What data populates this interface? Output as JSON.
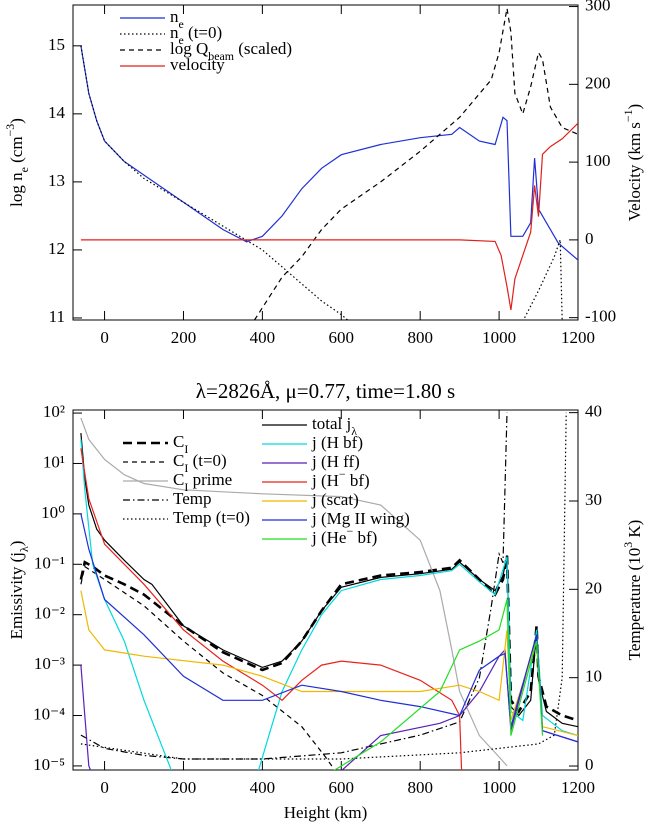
{
  "chart_data": [
    {
      "type": "line",
      "ylabel": "log n_{e} (cm^{−3})",
      "y2label": "Velocity (km s^{−1})",
      "legend": "upper left",
      "xlim": [
        -80,
        1200
      ],
      "xticks": [
        0,
        200,
        400,
        600,
        800,
        1000,
        1200
      ],
      "ylim": [
        10.97,
        15.6
      ],
      "yticks": [
        11,
        12,
        13,
        14,
        15
      ],
      "y2lim": [
        -103,
        302
      ],
      "y2ticks": [
        -100,
        0,
        100,
        200,
        300
      ],
      "series": [
        {
          "name": "n_{e}",
          "color": "#1f2fd6",
          "style": "solid",
          "x": [
            -60,
            -40,
            -20,
            0,
            50,
            100,
            200,
            300,
            360,
            400,
            450,
            500,
            550,
            600,
            700,
            800,
            880,
            900,
            950,
            990,
            1010,
            1020,
            1030,
            1060,
            1080,
            1090,
            1100,
            1120,
            1150,
            1200
          ],
          "values": [
            15.0,
            14.3,
            13.9,
            13.6,
            13.3,
            13.1,
            12.7,
            12.3,
            12.12,
            12.2,
            12.5,
            12.9,
            13.2,
            13.4,
            13.55,
            13.65,
            13.7,
            13.8,
            13.6,
            13.55,
            13.95,
            13.9,
            12.2,
            12.2,
            12.4,
            13.35,
            12.6,
            12.4,
            12.1,
            11.85
          ]
        },
        {
          "name": "n_{e} (t=0)",
          "color": "#000000",
          "style": "dotted",
          "x": [
            -60,
            -40,
            -20,
            0,
            50,
            100,
            200,
            300,
            400,
            500,
            550,
            600,
            620,
            null,
            1060,
            1100,
            1140,
            1155,
            1160
          ],
          "values": [
            15.0,
            14.3,
            13.9,
            13.6,
            13.3,
            13.05,
            12.7,
            12.35,
            12.0,
            11.5,
            11.25,
            11.05,
            10.95,
            null,
            10.95,
            11.4,
            11.9,
            12.15,
            10.95
          ]
        },
        {
          "name": "log Q_{beam} (scaled)",
          "color": "#000000",
          "style": "dashed",
          "x": [
            380,
            450,
            500,
            550,
            600,
            700,
            800,
            900,
            980,
            1000,
            1020,
            1030,
            1040,
            1060,
            1080,
            1100,
            1110,
            1130,
            1160,
            1200
          ],
          "values": [
            10.97,
            11.6,
            11.9,
            12.3,
            12.6,
            13.0,
            13.45,
            13.95,
            14.5,
            14.9,
            15.55,
            15.2,
            14.3,
            14.0,
            14.4,
            14.9,
            14.8,
            14.1,
            13.8,
            13.7
          ]
        },
        {
          "name": "velocity",
          "color": "#e0201b",
          "style": "solid",
          "axis": "y2",
          "x": [
            -60,
            900,
            990,
            1005,
            1020,
            1030,
            1040,
            1060,
            1080,
            1090,
            1100,
            1110,
            1130,
            1160,
            1200
          ],
          "values": [
            0,
            0,
            -2,
            -20,
            -60,
            -90,
            -50,
            -20,
            10,
            70,
            30,
            110,
            120,
            130,
            150
          ]
        }
      ]
    },
    {
      "type": "line",
      "title": "λ=2826Å, μ=0.77, time=1.80 s",
      "xlabel": "Height (km)",
      "ylabel": "Emissivity (j_{λ})",
      "y2label": "Temperature (10^{3} K)",
      "legend": "upper left",
      "ylog": true,
      "xlim": [
        -80,
        1200
      ],
      "xticks": [
        0,
        200,
        400,
        600,
        800,
        1000,
        1200
      ],
      "ylim": [
        8.3e-06,
        115
      ],
      "yticks": [
        {
          "value": 1e-05,
          "label": "10⁻⁵"
        },
        {
          "value": 0.0001,
          "label": "10⁻⁴"
        },
        {
          "value": 0.001,
          "label": "10⁻³"
        },
        {
          "value": 0.01,
          "label": "10⁻²"
        },
        {
          "value": 0.1,
          "label": "10⁻¹"
        },
        {
          "value": 1,
          "label": "10⁰"
        },
        {
          "value": 10,
          "label": "10¹"
        },
        {
          "value": 100,
          "label": "10²"
        }
      ],
      "y2lim": [
        -0.45,
        40.3
      ],
      "y2ticks": [
        0,
        10,
        20,
        30,
        40
      ],
      "series": [
        {
          "name": "C_{I}",
          "color": "#000000",
          "style": "bold-dashed",
          "x": [
            -60,
            -50,
            -30,
            0,
            50,
            100,
            200,
            300,
            400,
            450,
            500,
            550,
            600,
            700,
            800,
            880,
            900,
            950,
            990,
            1010,
            1020,
            1030,
            1050,
            1080,
            1095,
            1100,
            1120,
            1160,
            1200
          ],
          "values": [
            0.05,
            0.11,
            0.09,
            0.06,
            0.04,
            0.025,
            0.006,
            0.0018,
            0.0008,
            0.0011,
            0.003,
            0.012,
            0.04,
            0.06,
            0.07,
            0.085,
            0.12,
            0.05,
            0.025,
            0.05,
            0.15,
            0.0002,
            0.00012,
            0.0003,
            0.006,
            0.0006,
            0.00015,
            0.0001,
            8e-05
          ]
        },
        {
          "name": "C_{I} (t=0)",
          "color": "#000000",
          "style": "dashed",
          "x": [
            -60,
            -50,
            0,
            100,
            200,
            300,
            400,
            500,
            560,
            580
          ],
          "values": [
            0.04,
            0.09,
            0.05,
            0.015,
            0.003,
            0.0007,
            0.00025,
            6e-05,
            1.5e-05,
            9e-06
          ]
        },
        {
          "name": "C_{I} prime",
          "color": "#aaaaaa",
          "style": "solid",
          "x": [
            -60,
            -40,
            0,
            50,
            100,
            200,
            400,
            600,
            700,
            800,
            850,
            880,
            900,
            950,
            1000,
            1020
          ],
          "values": [
            80,
            30,
            12,
            6,
            4,
            3,
            2.5,
            2.2,
            1.5,
            0.3,
            0.03,
            0.002,
            0.0003,
            4e-05,
            1.5e-05,
            1e-05
          ]
        },
        {
          "name": "Temp",
          "color": "#000000",
          "style": "dashdot",
          "axis": "y2",
          "x": [
            -60,
            0,
            100,
            200,
            400,
            600,
            700,
            800,
            900,
            950,
            980,
            1000,
            1010,
            1020
          ],
          "values": [
            3.5,
            2,
            1.2,
            0.8,
            0.8,
            1.5,
            2.5,
            3.5,
            5,
            10,
            18,
            24,
            23,
            40
          ]
        },
        {
          "name": "Temp (t=0)",
          "color": "#000000",
          "style": "dotted",
          "axis": "y2",
          "x": [
            -60,
            200,
            600,
            900,
            1100,
            1140,
            1160,
            1170
          ],
          "values": [
            2.5,
            0.8,
            0.8,
            1.5,
            2.5,
            3.5,
            10,
            40
          ]
        },
        {
          "name": "total j_{λ}",
          "color": "#000000",
          "style": "solid",
          "x": [
            -60,
            -50,
            -40,
            -20,
            0,
            50,
            100,
            120,
            200,
            300,
            400,
            450,
            500,
            550,
            600,
            700,
            800,
            880,
            900,
            950,
            990,
            1010,
            1020,
            1030,
            1050,
            1080,
            1095,
            1100,
            1120,
            1160,
            1200
          ],
          "values": [
            40,
            5,
            1.5,
            0.5,
            0.3,
            0.12,
            0.05,
            0.04,
            0.006,
            0.002,
            0.0009,
            0.0012,
            0.003,
            0.012,
            0.035,
            0.055,
            0.065,
            0.08,
            0.11,
            0.05,
            0.03,
            0.06,
            0.15,
            0.00015,
            0.0001,
            0.0002,
            0.005,
            0.0005,
            0.00012,
            7e-05,
            6e-05
          ]
        },
        {
          "name": "j (H bf)",
          "color": "#00d8e0",
          "style": "solid",
          "x": [
            -60,
            -50,
            -30,
            0,
            50,
            100,
            150,
            170,
            null,
            390,
            420,
            450,
            500,
            550,
            600,
            700,
            800,
            880,
            900,
            950,
            990,
            1020,
            1030,
            1060,
            1095,
            1110,
            1160,
            1200
          ],
          "values": [
            30,
            3,
            0.1,
            0.02,
            0.003,
            0.0002,
            2e-05,
            8e-06,
            null,
            8e-06,
            5e-05,
            0.0003,
            0.002,
            0.01,
            0.03,
            0.05,
            0.06,
            0.075,
            0.1,
            0.045,
            0.025,
            0.14,
            0.00012,
            8e-05,
            0.005,
            0.0001,
            5e-05,
            4e-05
          ]
        },
        {
          "name": "j (H ff)",
          "color": "#5a1fb8",
          "style": "solid",
          "x": [
            -60,
            -50,
            -40,
            -35,
            null,
            600,
            700,
            850,
            900,
            950,
            1000,
            1015,
            1030,
            1095,
            1110,
            1200
          ],
          "values": [
            0.001,
            0.0001,
            1e-05,
            8e-06,
            null,
            8e-06,
            4e-05,
            7e-05,
            0.0001,
            0.0003,
            0.0015,
            0.002,
            5e-05,
            0.004,
            5e-05,
            3e-05
          ]
        },
        {
          "name": "j (H^{−} bf)",
          "color": "#e8231c",
          "style": "solid",
          "x": [
            -60,
            -40,
            0,
            50,
            100,
            200,
            300,
            400,
            450,
            500,
            550,
            600,
            700,
            800,
            880,
            900,
            905
          ],
          "values": [
            20,
            2,
            0.25,
            0.1,
            0.04,
            0.005,
            0.0012,
            0.0004,
            0.0002,
            0.0005,
            0.001,
            0.0012,
            0.001,
            0.0005,
            0.0002,
            0.0001,
            8e-06
          ]
        },
        {
          "name": "j (scat)",
          "color": "#f0b800",
          "style": "solid",
          "x": [
            -60,
            -40,
            0,
            100,
            300,
            400,
            500,
            600,
            800,
            900,
            950,
            1000,
            1020,
            1030,
            1095,
            1110,
            1200
          ],
          "values": [
            0.03,
            0.005,
            0.002,
            0.0015,
            0.001,
            0.0006,
            0.0003,
            0.0003,
            0.0003,
            0.0004,
            0.0003,
            0.0002,
            0.005,
            8e-05,
            0.003,
            6e-05,
            4e-05
          ]
        },
        {
          "name": "j (Mg II wing)",
          "color": "#1f2fd6",
          "style": "solid",
          "x": [
            -60,
            -40,
            0,
            100,
            200,
            300,
            400,
            500,
            600,
            700,
            800,
            900,
            950,
            1000,
            1015,
            1030,
            1095,
            1110,
            1200
          ],
          "values": [
            1,
            0.2,
            0.02,
            0.004,
            0.0006,
            0.0002,
            0.0002,
            0.0004,
            0.0003,
            0.0002,
            0.00015,
            0.0001,
            0.0008,
            0.0015,
            0.0017,
            6e-05,
            0.004,
            5e-05,
            3e-05
          ]
        },
        {
          "name": "j (He^{−} bf)",
          "color": "#22dd22",
          "style": "solid",
          "x": [
            580,
            700,
            850,
            900,
            950,
            1000,
            1020,
            1030,
            1095,
            1110
          ],
          "values": [
            8e-06,
            3e-05,
            0.0003,
            0.002,
            0.003,
            0.005,
            0.02,
            4e-05,
            0.003,
            4e-05
          ]
        }
      ]
    }
  ]
}
